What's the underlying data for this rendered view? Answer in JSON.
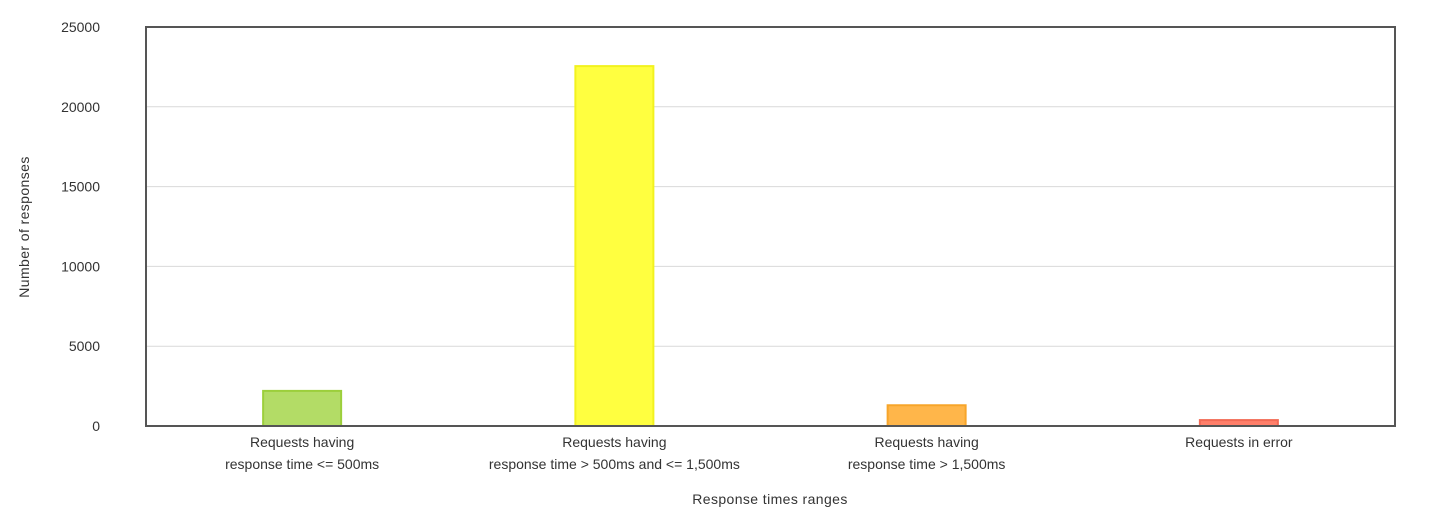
{
  "chart_data": {
    "type": "bar",
    "title": "",
    "xlabel": "Response times ranges",
    "ylabel": "Number of responses",
    "ylim": [
      0,
      25000
    ],
    "yticks": [
      0,
      5000,
      10000,
      15000,
      20000,
      25000
    ],
    "grid": true,
    "categories": [
      [
        "Requests having",
        "response time <= 500ms"
      ],
      [
        "Requests having",
        "response time > 500ms and <= 1,500ms"
      ],
      [
        "Requests having",
        "response time > 1,500ms"
      ],
      [
        "Requests in error"
      ]
    ],
    "values": [
      2200,
      22550,
      1300,
      370
    ],
    "colors": [
      {
        "fill": "#b3dc66",
        "stroke": "#9ccf3b"
      },
      {
        "fill": "#ffff40",
        "stroke": "#f2f21f"
      },
      {
        "fill": "#ffb64a",
        "stroke": "#f7a52a"
      },
      {
        "fill": "#ff7f6a",
        "stroke": "#f26a55"
      }
    ]
  }
}
